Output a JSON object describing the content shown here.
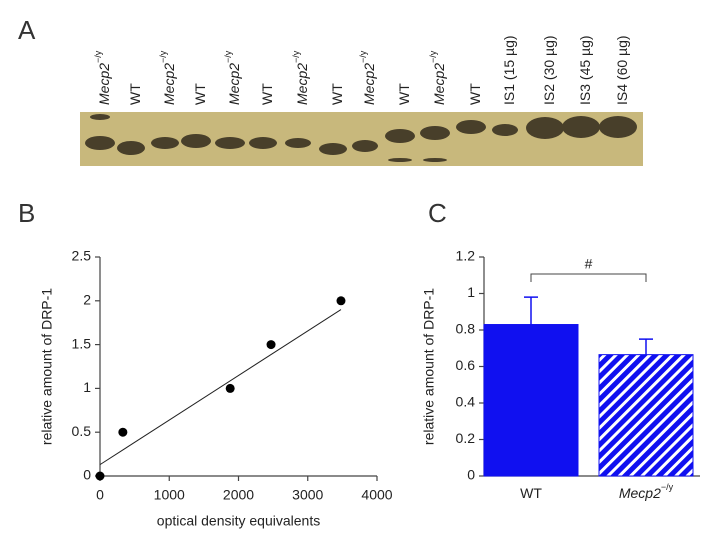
{
  "blot": {
    "panel_label": "A",
    "lanes": [
      {
        "label": "Mecp2",
        "sup": "−/y"
      },
      {
        "label": "WT"
      },
      {
        "label": "Mecp2",
        "sup": "−/y"
      },
      {
        "label": "WT"
      },
      {
        "label": "Mecp2",
        "sup": "−/y"
      },
      {
        "label": "WT"
      },
      {
        "label": "Mecp2",
        "sup": "−/y"
      },
      {
        "label": "WT"
      },
      {
        "label": "Mecp2",
        "sup": "−/y"
      },
      {
        "label": "WT"
      },
      {
        "label": "Mecp2",
        "sup": "−/y"
      },
      {
        "label": "WT"
      },
      {
        "label": "IS1 (15 µg)"
      },
      {
        "label": "IS2 (30 µg)"
      },
      {
        "label": "IS3 (45 µg)"
      },
      {
        "label": "IS4 (60 µg)"
      }
    ]
  },
  "chart_data": [
    {
      "type": "scatter",
      "panel_label": "B",
      "x_label": "optical density equivalents",
      "y_label": "relative amount of DRP-1",
      "x": [
        0,
        330,
        1880,
        2470,
        3480
      ],
      "values": [
        0,
        0.5,
        1,
        1.5,
        2
      ],
      "color": "#000000",
      "trendline": {
        "x": [
          0,
          3480
        ],
        "y": [
          0.13,
          1.9
        ]
      },
      "xlim": [
        0,
        4000
      ],
      "xticks": [
        0,
        1000,
        2000,
        3000,
        4000
      ],
      "ylim": [
        0,
        2.5
      ],
      "yticks": [
        0,
        0.5,
        1,
        1.5,
        2,
        2.5
      ]
    },
    {
      "type": "bar",
      "panel_label": "C",
      "y_label": "relative amount of DRP-1",
      "categories": [
        "WT",
        "Mecp2"
      ],
      "category_superscripts": [
        null,
        "−/y"
      ],
      "values": [
        0.83,
        0.665
      ],
      "errors": [
        0.15,
        0.085
      ],
      "color": "#1010f0",
      "hatch": [
        false,
        true
      ],
      "annotation": {
        "text": "#",
        "between": [
          0,
          1
        ]
      },
      "ylim": [
        0,
        1.2
      ],
      "yticks": [
        0,
        0.2,
        0.4,
        0.6,
        0.8,
        1,
        1.2
      ]
    }
  ]
}
